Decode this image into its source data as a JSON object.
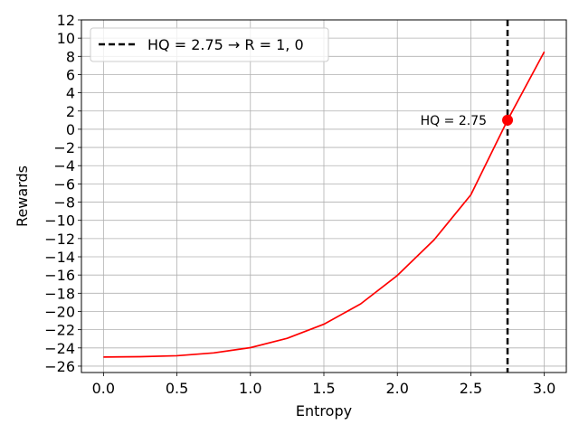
{
  "chart_data": {
    "type": "line",
    "xlabel": "Entropy",
    "ylabel": "Rewards",
    "xlim": [
      -0.15,
      3.15
    ],
    "ylim": [
      -26.7,
      12
    ],
    "xticks": [
      "0.0",
      "0.5",
      "1.0",
      "1.5",
      "2.0",
      "2.5",
      "3.0"
    ],
    "yticks": [
      "12",
      "10",
      "8",
      "6",
      "4",
      "2",
      "0",
      "−2",
      "−4",
      "−6",
      "−8",
      "−10",
      "−12",
      "−14",
      "−16",
      "−18",
      "−20",
      "−22",
      "−24",
      "−26"
    ],
    "grid": true,
    "series": [
      {
        "color": "#ff0000",
        "x": [
          0.0,
          0.25,
          0.5,
          0.75,
          1.0,
          1.25,
          1.5,
          1.75,
          2.0,
          2.25,
          2.5,
          2.75,
          3.0
        ],
        "values": [
          -25.0,
          -24.96,
          -24.86,
          -24.55,
          -23.97,
          -22.95,
          -21.4,
          -19.17,
          -16.05,
          -12.14,
          -7.2,
          1.0,
          8.5
        ]
      }
    ],
    "reference_line": {
      "x": 2.75,
      "color": "#000000",
      "legend_label": "HQ = 2.75 → R = 1, 0"
    },
    "marker": {
      "x": 2.75,
      "y": 1.0,
      "color": "#ff0000",
      "label": "HQ = 2.75"
    },
    "legend_position": "top-left"
  }
}
